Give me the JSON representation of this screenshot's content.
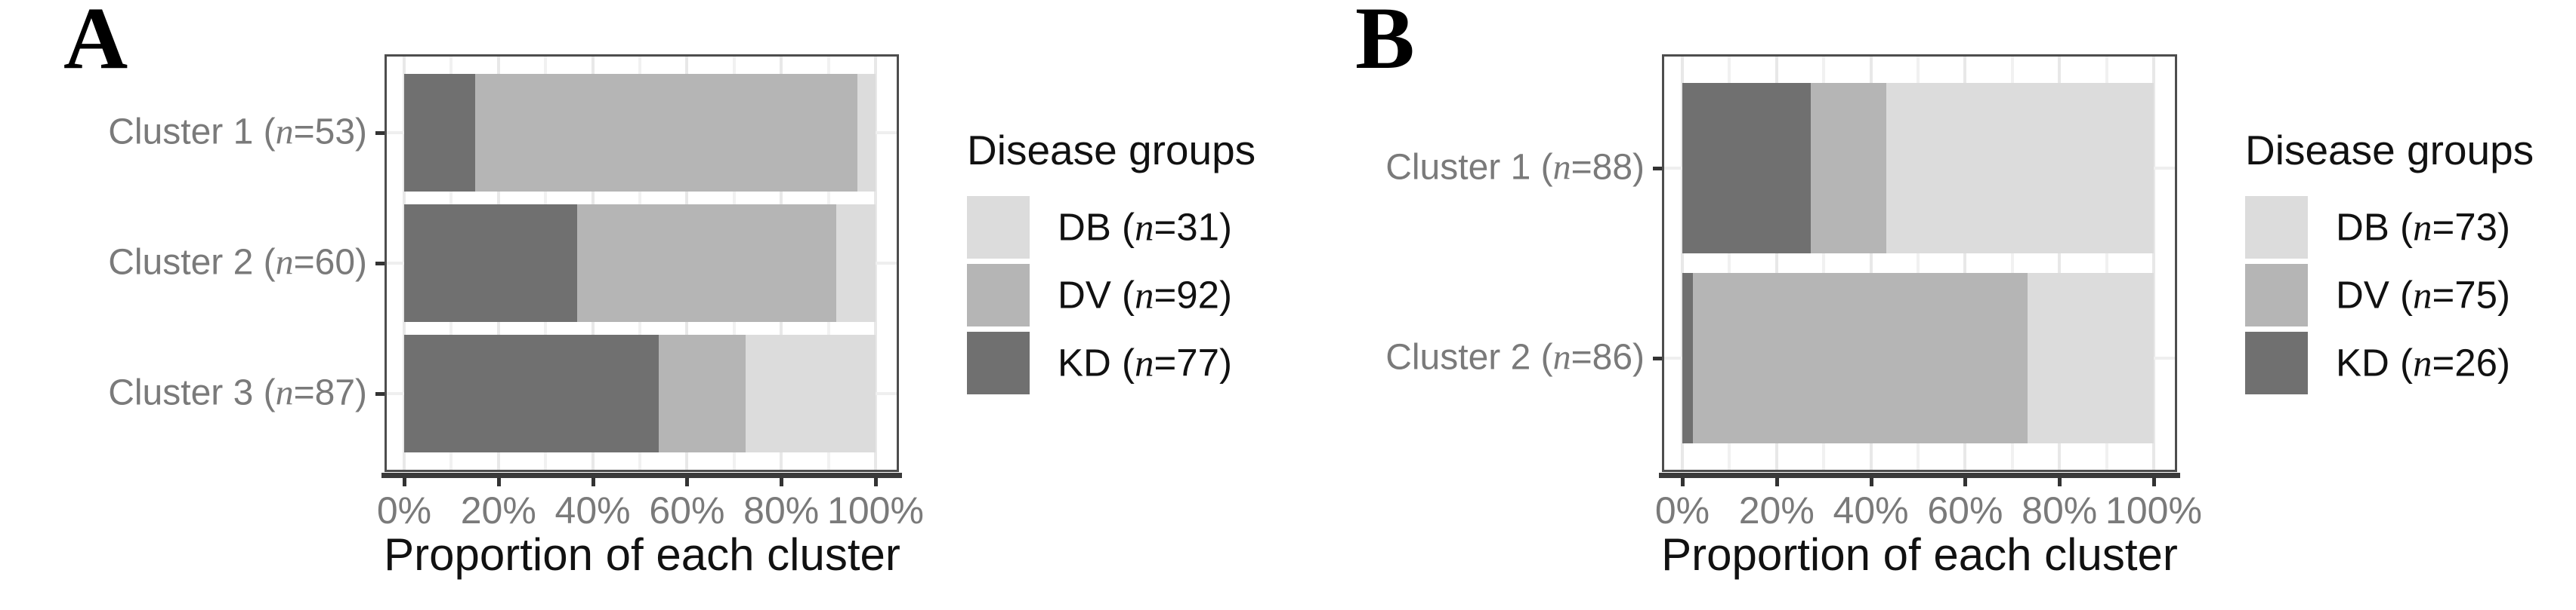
{
  "figure": {
    "background": "#ffffff",
    "group_colors": {
      "DB": "#dcdcdc",
      "DV": "#b5b5b5",
      "KD": "#707070"
    },
    "text_colors": {
      "axis_text": "#7a7a7a",
      "axis_title": "#111111",
      "legend_text": "#111111"
    },
    "panels": [
      {
        "letter": "A",
        "xlabel": "Proportion of each cluster",
        "legend_title": "Disease groups",
        "x_ticks": [
          "0%",
          "20%",
          "40%",
          "60%",
          "80%",
          "100%"
        ],
        "clusters": [
          {
            "prefix": "Cluster 1 (",
            "n": "n",
            "suffix": "=53)",
            "segments": [
              {
                "group": "KD",
                "pct": 15.1
              },
              {
                "group": "DV",
                "pct": 81.1
              },
              {
                "group": "DB",
                "pct": 3.8
              }
            ]
          },
          {
            "prefix": "Cluster 2 (",
            "n": "n",
            "suffix": "=60)",
            "segments": [
              {
                "group": "KD",
                "pct": 36.7
              },
              {
                "group": "DV",
                "pct": 55.0
              },
              {
                "group": "DB",
                "pct": 8.3
              }
            ]
          },
          {
            "prefix": "Cluster 3 (",
            "n": "n",
            "suffix": "=87)",
            "segments": [
              {
                "group": "KD",
                "pct": 54.0
              },
              {
                "group": "DV",
                "pct": 18.4
              },
              {
                "group": "DB",
                "pct": 27.6
              }
            ]
          }
        ],
        "legend_items": [
          {
            "group": "DB",
            "prefix": "DB (",
            "n": "n",
            "suffix": "=31)"
          },
          {
            "group": "DV",
            "prefix": "DV (",
            "n": "n",
            "suffix": "=92)"
          },
          {
            "group": "KD",
            "prefix": "KD (",
            "n": "n",
            "suffix": "=77)"
          }
        ]
      },
      {
        "letter": "B",
        "xlabel": "Proportion of each cluster",
        "legend_title": "Disease groups",
        "x_ticks": [
          "0%",
          "20%",
          "40%",
          "60%",
          "80%",
          "100%"
        ],
        "clusters": [
          {
            "prefix": "Cluster 1 (",
            "n": "n",
            "suffix": "=88)",
            "segments": [
              {
                "group": "KD",
                "pct": 27.3
              },
              {
                "group": "DV",
                "pct": 15.9
              },
              {
                "group": "DB",
                "pct": 56.8
              }
            ]
          },
          {
            "prefix": "Cluster 2 (",
            "n": "n",
            "suffix": "=86)",
            "segments": [
              {
                "group": "KD",
                "pct": 2.3
              },
              {
                "group": "DV",
                "pct": 70.9
              },
              {
                "group": "DB",
                "pct": 26.8
              }
            ]
          }
        ],
        "legend_items": [
          {
            "group": "DB",
            "prefix": "DB (",
            "n": "n",
            "suffix": "=73)"
          },
          {
            "group": "DV",
            "prefix": "DV (",
            "n": "n",
            "suffix": "=75)"
          },
          {
            "group": "KD",
            "prefix": "KD (",
            "n": "n",
            "suffix": "=26)"
          }
        ]
      }
    ]
  },
  "chart_data": [
    {
      "type": "bar",
      "panel": "A",
      "orientation": "horizontal",
      "stacked": true,
      "stack_order_left_to_right": [
        "KD",
        "DV",
        "DB"
      ],
      "categories": [
        "Cluster 1 (n=53)",
        "Cluster 2 (n=60)",
        "Cluster 3 (n=87)"
      ],
      "series": [
        {
          "name": "KD (n=77)",
          "values": [
            15.1,
            36.7,
            54.0
          ]
        },
        {
          "name": "DV (n=92)",
          "values": [
            81.1,
            55.0,
            18.4
          ]
        },
        {
          "name": "DB (n=31)",
          "values": [
            3.8,
            8.3,
            27.6
          ]
        }
      ],
      "values_unit": "percent of each cluster",
      "xlabel": "Proportion of each cluster",
      "x_ticks": [
        "0%",
        "20%",
        "40%",
        "60%",
        "80%",
        "100%"
      ],
      "xlim": [
        0,
        100
      ],
      "grid": true,
      "legend_title": "Disease groups",
      "legend_position": "right",
      "legend_order": [
        "DB (n=31)",
        "DV (n=92)",
        "KD (n=77)"
      ]
    },
    {
      "type": "bar",
      "panel": "B",
      "orientation": "horizontal",
      "stacked": true,
      "stack_order_left_to_right": [
        "KD",
        "DV",
        "DB"
      ],
      "categories": [
        "Cluster 1 (n=88)",
        "Cluster 2 (n=86)"
      ],
      "series": [
        {
          "name": "KD (n=26)",
          "values": [
            27.3,
            2.3
          ]
        },
        {
          "name": "DV (n=75)",
          "values": [
            15.9,
            70.9
          ]
        },
        {
          "name": "DB (n=73)",
          "values": [
            56.8,
            26.8
          ]
        }
      ],
      "values_unit": "percent of each cluster",
      "xlabel": "Proportion of each cluster",
      "x_ticks": [
        "0%",
        "20%",
        "40%",
        "60%",
        "80%",
        "100%"
      ],
      "xlim": [
        0,
        100
      ],
      "grid": true,
      "legend_title": "Disease groups",
      "legend_position": "right",
      "legend_order": [
        "DB (n=73)",
        "DV (n=75)",
        "KD (n=26)"
      ]
    }
  ]
}
